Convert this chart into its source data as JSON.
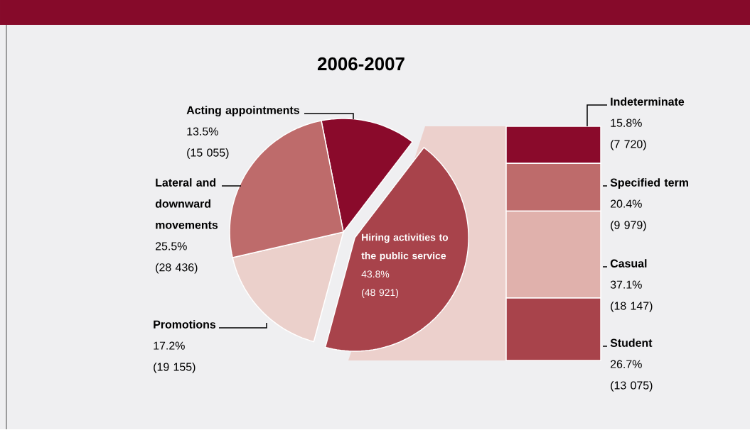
{
  "chart_data": [
    {
      "type": "pie",
      "title": "2006-2007",
      "categories": [
        "Acting appointments",
        "Hiring activities to the public service",
        "Promotions",
        "Lateral and downward movements"
      ],
      "values": [
        13.5,
        43.8,
        17.2,
        25.5
      ],
      "colors": [
        "#8a0a2b",
        "#a8434b",
        "#ebd0cb",
        "#be6b6b"
      ],
      "value_labels": [
        "13.5%",
        "43.8%",
        "17.2%",
        "25.5%"
      ],
      "annotations": [
        "(15 055)",
        "(48 921)",
        "(19 155)",
        "(28 436)"
      ]
    },
    {
      "type": "bar",
      "stacked": true,
      "categories": [
        null
      ],
      "series": [
        {
          "name": "Student",
          "color": "#a8434b",
          "values": [
            26.7
          ],
          "value_labels": [
            "26.7%"
          ]
        },
        {
          "name": "Casual",
          "color": "#e0b1ac",
          "values": [
            37.1
          ],
          "value_labels": [
            "37.1%"
          ]
        },
        {
          "name": "Specified term",
          "color": "#be6b6b",
          "values": [
            20.4
          ],
          "value_labels": [
            "20.4%"
          ]
        },
        {
          "name": "Indeterminate",
          "color": "#8a0a2b",
          "values": [
            15.8
          ],
          "value_labels": [
            "15.8%"
          ]
        }
      ],
      "annotations": [
        "(13 075)",
        "(18 147)",
        "(9 979)",
        "(7 720)"
      ]
    }
  ]
}
